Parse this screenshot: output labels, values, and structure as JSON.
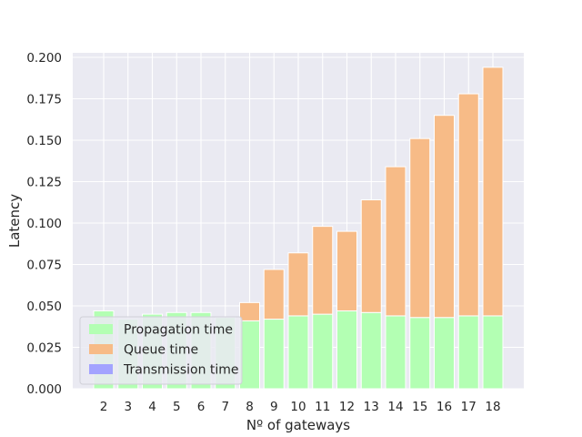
{
  "chart_data": {
    "type": "bar",
    "stacked": true,
    "title": "",
    "xlabel": "Nº of gateways",
    "ylabel": "Latency",
    "categories": [
      "2",
      "3",
      "4",
      "5",
      "6",
      "7",
      "8",
      "9",
      "10",
      "11",
      "12",
      "13",
      "14",
      "15",
      "16",
      "17",
      "18"
    ],
    "ylim": [
      0,
      0.2
    ],
    "yticks": [
      "0.000",
      "0.025",
      "0.050",
      "0.075",
      "0.100",
      "0.125",
      "0.150",
      "0.175",
      "0.200"
    ],
    "grid": true,
    "legend_position": "lower-left",
    "series": [
      {
        "name": "Propagation time",
        "color": "#b3ffb3",
        "values": [
          0.047,
          0.042,
          0.045,
          0.046,
          0.046,
          0.043,
          0.041,
          0.042,
          0.044,
          0.045,
          0.047,
          0.046,
          0.044,
          0.043,
          0.043,
          0.044,
          0.044
        ]
      },
      {
        "name": "Queue time",
        "color": "#f7bb87",
        "values": [
          0.0,
          0.0,
          0.0,
          0.0,
          0.0,
          0.0,
          0.011,
          0.03,
          0.038,
          0.053,
          0.048,
          0.068,
          0.09,
          0.108,
          0.122,
          0.134,
          0.15
        ]
      },
      {
        "name": "Transmission time",
        "color": "#a3a3ff",
        "values": [
          0.0,
          0.0,
          0.0,
          0.0,
          0.0,
          0.0,
          0.0,
          0.0,
          0.0,
          0.0,
          0.0,
          0.0,
          0.0,
          0.0,
          0.0,
          0.0,
          0.0
        ]
      }
    ]
  }
}
